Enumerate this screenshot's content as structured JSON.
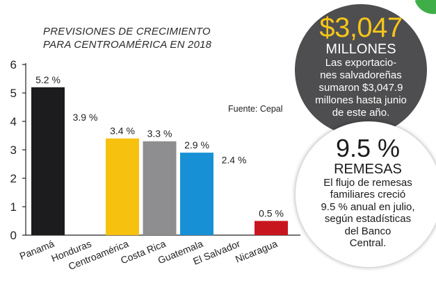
{
  "chart_data": {
    "type": "bar",
    "title_lines": [
      "PREVISIONES DE CRECIMIENTO",
      "PARA CENTROAMÉRICA EN 2018"
    ],
    "source": "Fuente: Cepal",
    "categories": [
      "Panamá",
      "Honduras",
      "Centroamérica",
      "Costa Rica",
      "Guatemala",
      "El Salvador",
      "Nicaragua"
    ],
    "values": [
      5.2,
      3.9,
      3.4,
      3.3,
      2.9,
      2.4,
      0.5
    ],
    "value_labels": [
      "5.2 %",
      "3.9 %",
      "3.4 %",
      "3.3 %",
      "2.9 %",
      "2.4 %",
      "0.5 %"
    ],
    "bar_colors": [
      "#1c1c1f",
      null,
      "#f7c20f",
      "#8e8e90",
      "#1890d6",
      null,
      "#c8161f"
    ],
    "yticks": [
      "0",
      "1",
      "2",
      "3",
      "4",
      "5",
      "6"
    ],
    "ylim": [
      0,
      6
    ],
    "grid": false
  },
  "callouts": [
    {
      "big": "$3,047",
      "heading": "MILLONES",
      "text": [
        "Las exportacio-",
        "nes salvadoreñas",
        "sumaron $3,047.9",
        "millones hasta junio",
        "de este año."
      ],
      "bg_color": "#4e4e50",
      "big_color": "#f4c619"
    },
    {
      "big": "9.5 %",
      "heading": "REMESAS",
      "text": [
        "El flujo de remesas",
        "familiares creció",
        "9.5 % anual en julio,",
        "según estadísticas",
        "del Banco",
        "Central."
      ],
      "bg_color": "#ffffff"
    }
  ]
}
